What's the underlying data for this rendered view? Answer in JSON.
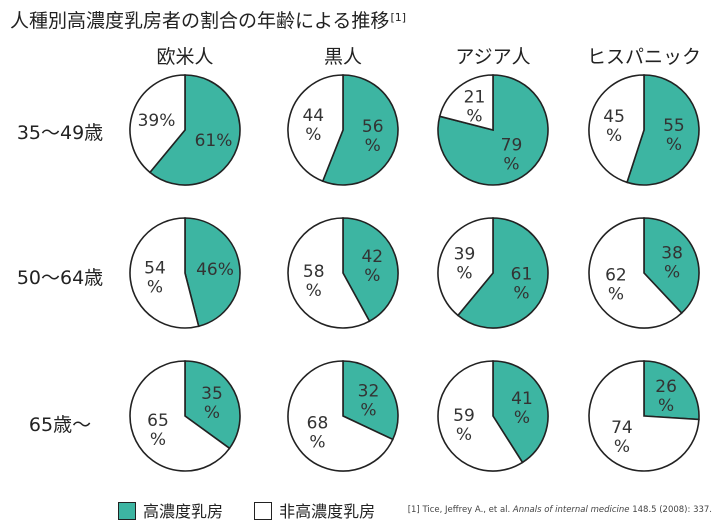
{
  "title": {
    "text": "人種別高濃度乳房者の割合の年齢による推移",
    "ref": "[1]"
  },
  "colors": {
    "dense": "#3db5a2",
    "nondense": "#ffffff",
    "outline": "#222222"
  },
  "legend": [
    {
      "label": "高濃度乳房",
      "color": "#3db5a2"
    },
    {
      "label": "非高濃度乳房",
      "color": "#ffffff"
    }
  ],
  "citation": {
    "prefix": "[1] Tice, Jeffrey A., et al.",
    "journal": "Annals of internal medicine",
    "suffix": "148.5 (2008): 337."
  },
  "chart_data": {
    "type": "pie",
    "columns": [
      "欧米人",
      "黒人",
      "アジア人",
      "ヒスパニック"
    ],
    "rows": [
      "35〜49歳",
      "50〜64歳",
      "65歳〜"
    ],
    "series_names": [
      "高濃度乳房",
      "非高濃度乳房"
    ],
    "values": [
      [
        [
          61,
          39
        ],
        [
          56,
          44
        ],
        [
          79,
          21
        ],
        [
          55,
          45
        ]
      ],
      [
        [
          46,
          54
        ],
        [
          42,
          58
        ],
        [
          61,
          39
        ],
        [
          38,
          62
        ]
      ],
      [
        [
          35,
          65
        ],
        [
          32,
          68
        ],
        [
          41,
          59
        ],
        [
          26,
          74
        ]
      ]
    ],
    "labels": [
      [
        [
          "61%",
          "39%"
        ],
        [
          "56|%",
          "44|%"
        ],
        [
          "79|%",
          "21|%"
        ],
        [
          "55|%",
          "45|%"
        ]
      ],
      [
        [
          "46%",
          "54|%"
        ],
        [
          "42|%",
          "58|%"
        ],
        [
          "61|%",
          "39|%"
        ],
        [
          "38|%",
          "62|%"
        ]
      ],
      [
        [
          "35|%",
          "65|%"
        ],
        [
          "32|%",
          "68|%"
        ],
        [
          "41|%",
          "59|%"
        ],
        [
          "26|%",
          "74|%"
        ]
      ]
    ]
  }
}
